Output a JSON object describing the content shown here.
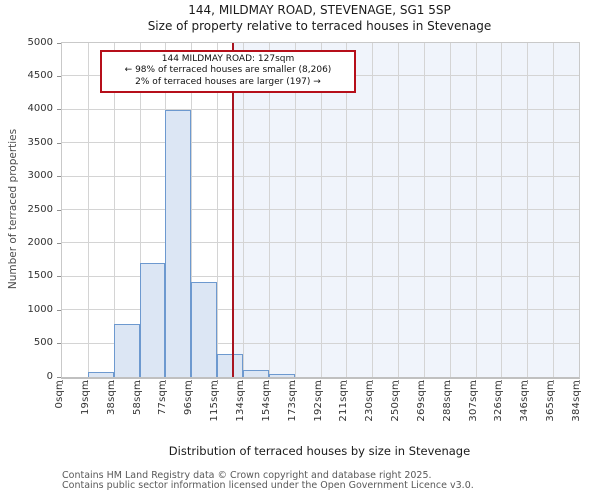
{
  "chart_data": {
    "type": "bar",
    "title": "144, MILDMAY ROAD, STEVENAGE, SG1 5SP",
    "subtitle": "Size of property relative to terraced houses in Stevenage",
    "xlabel": "Distribution of terraced houses by size in Stevenage",
    "ylabel": "Number of terraced properties",
    "x_tick_labels": [
      "0sqm",
      "19sqm",
      "38sqm",
      "58sqm",
      "77sqm",
      "96sqm",
      "115sqm",
      "134sqm",
      "154sqm",
      "173sqm",
      "192sqm",
      "211sqm",
      "230sqm",
      "250sqm",
      "269sqm",
      "288sqm",
      "307sqm",
      "326sqm",
      "346sqm",
      "365sqm",
      "384sqm"
    ],
    "y_ticks": [
      0,
      500,
      1000,
      1500,
      2000,
      2500,
      3000,
      3500,
      4000,
      4500,
      5000
    ],
    "ylim": [
      0,
      5000
    ],
    "xlim_sqm": [
      0,
      384
    ],
    "bin_width_sqm": 19.2,
    "values": [
      0,
      70,
      790,
      1700,
      4000,
      1420,
      350,
      110,
      40,
      0,
      0,
      0,
      0,
      0,
      0,
      0,
      0,
      0,
      0,
      0
    ],
    "grid": true,
    "legend": null,
    "marker_sqm": 127,
    "shaded_from_sqm": 127,
    "annotation": {
      "line1": "144 MILDMAY ROAD: 127sqm",
      "line2": "← 98% of terraced houses are smaller (8,206)",
      "line3": "2% of terraced houses are larger (197) →"
    },
    "colors": {
      "bar_fill": "#dce6f4",
      "bar_border": "#6d99cf",
      "marker_line": "#a81420",
      "annotation_border": "#b60f1a",
      "shaded_region": "#f0f4fb",
      "grid": "#d4d4d4"
    }
  },
  "footer": {
    "line1": "Contains HM Land Registry data © Crown copyright and database right 2025.",
    "line2": "Contains public sector information licensed under the Open Government Licence v3.0."
  }
}
